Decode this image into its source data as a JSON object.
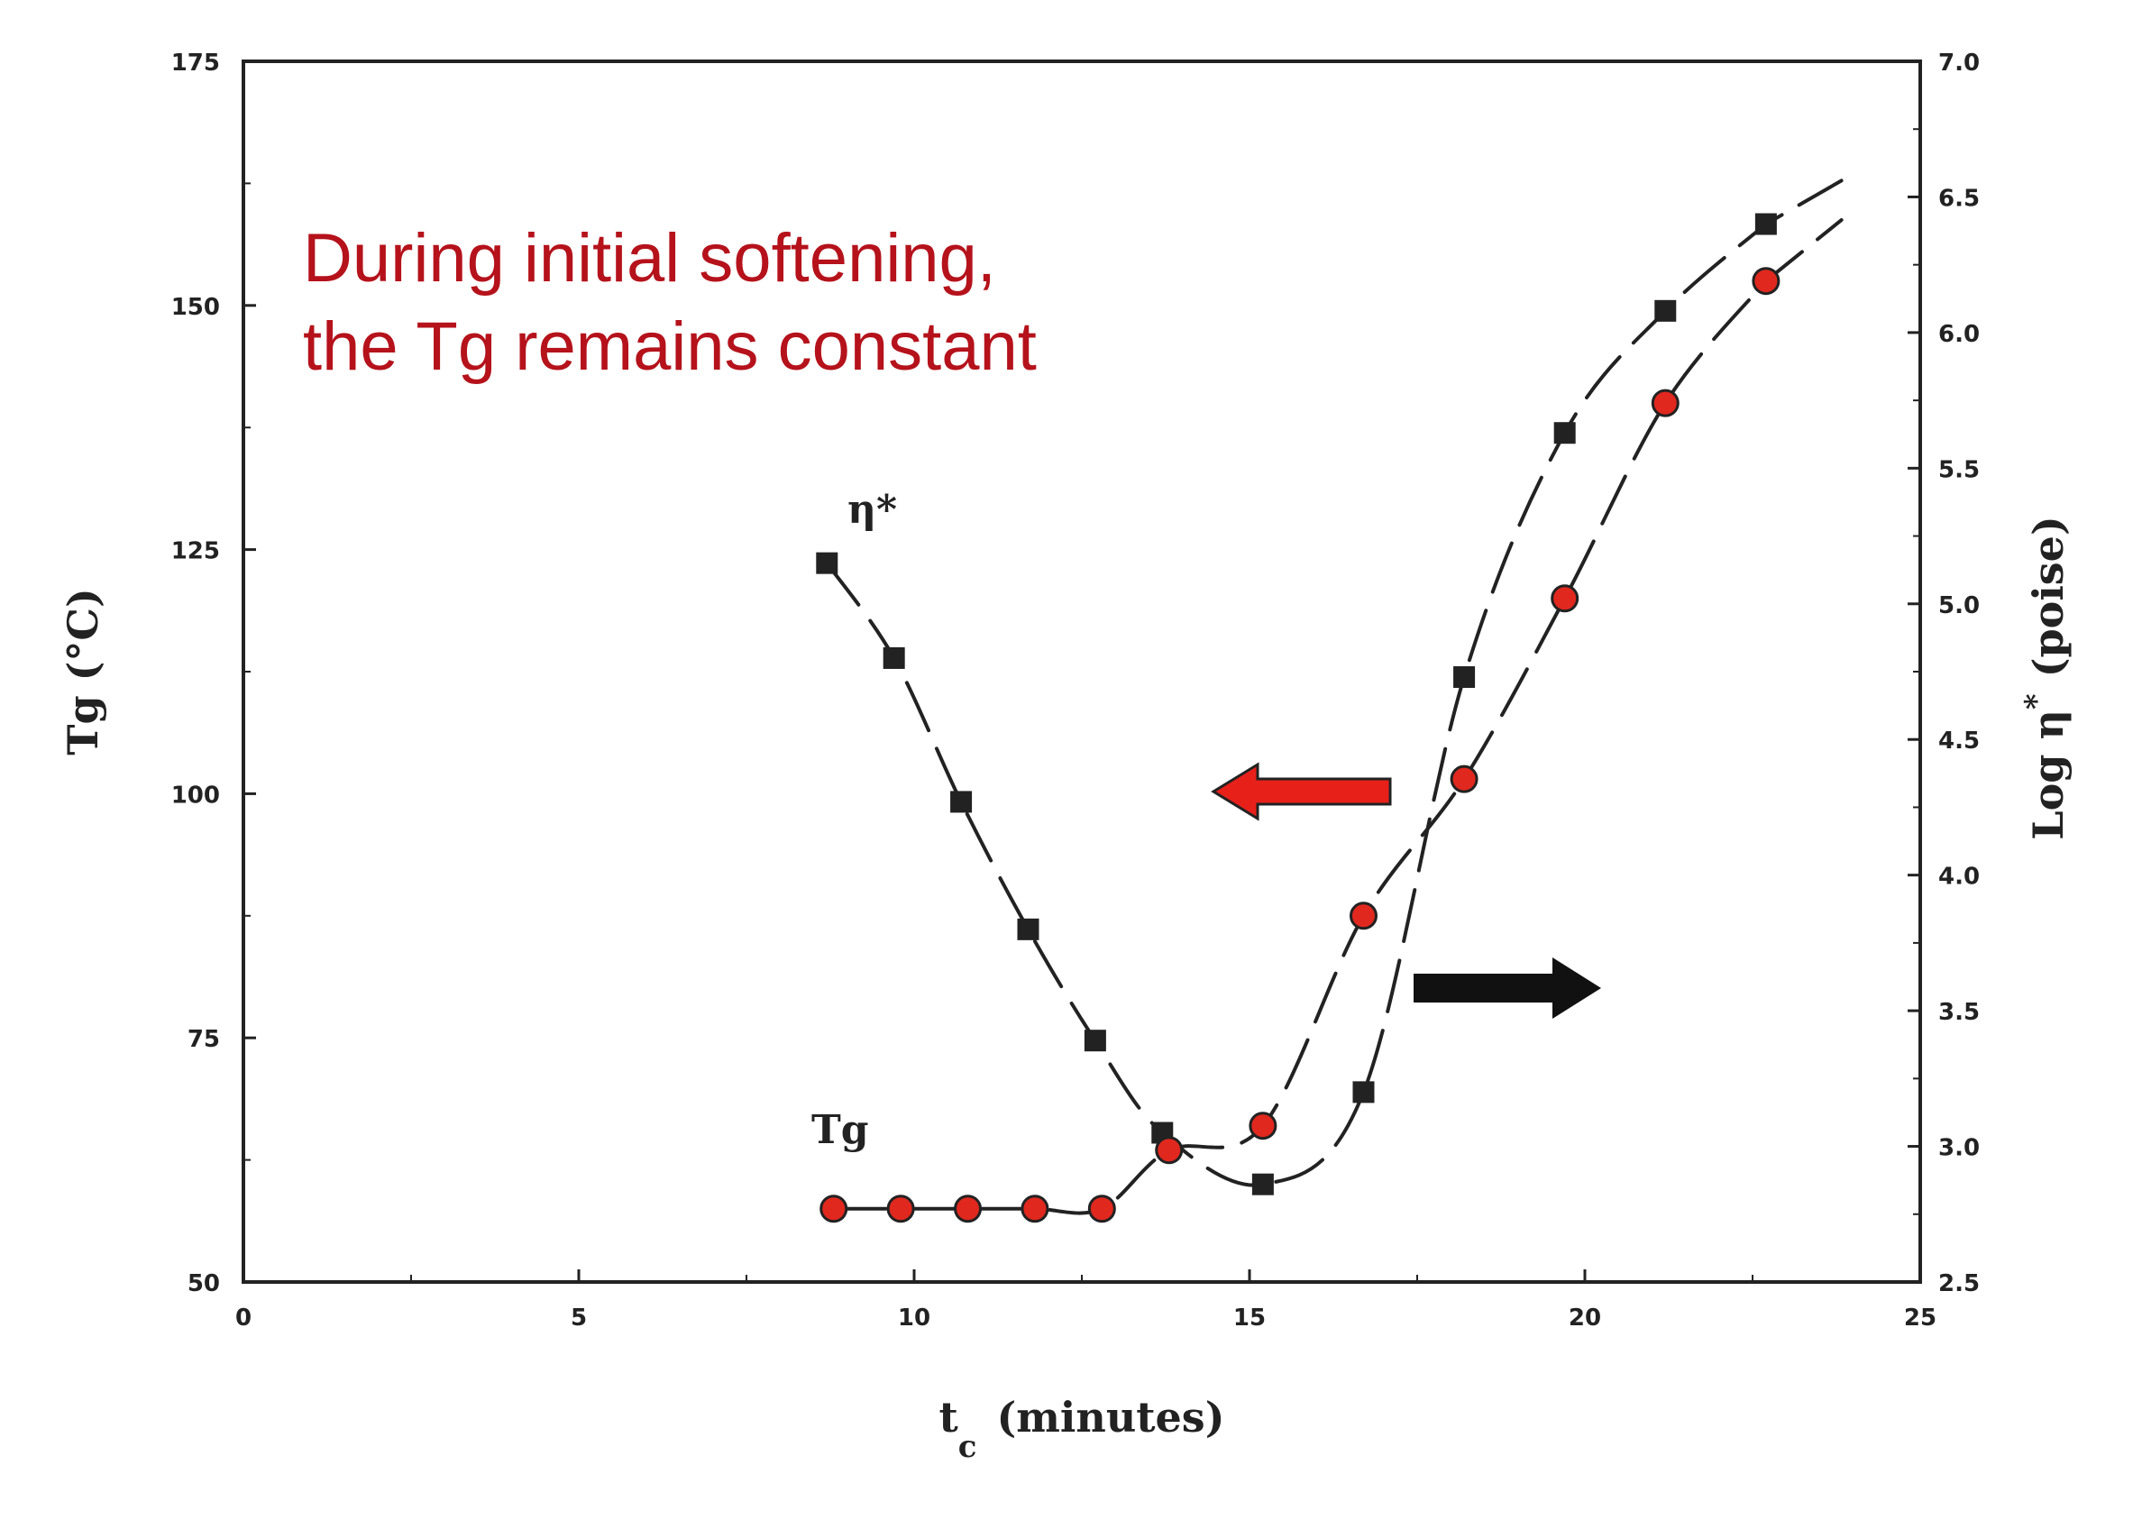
{
  "chart_data": {
    "type": "scatter",
    "annotation": [
      "During initial softening,",
      "the Tg remains constant"
    ],
    "x_axis": {
      "label_main": "t",
      "label_sub": "c",
      "label_rest": "(minutes)",
      "range": [
        0,
        25
      ],
      "ticks": [
        "0",
        "5",
        "10",
        "15",
        "20",
        "25"
      ]
    },
    "y_left": {
      "label": "Tg (°C)",
      "range": [
        50,
        175
      ],
      "ticks": [
        "50",
        "75",
        "100",
        "125",
        "150",
        "175"
      ]
    },
    "y_right": {
      "label_main": "Log η",
      "label_sup": "*",
      "label_rest": "(poise)",
      "range": [
        2.5,
        7.0
      ],
      "ticks": [
        "2.5",
        "3.0",
        "3.5",
        "4.0",
        "4.5",
        "5.0",
        "5.5",
        "6.0",
        "6.5",
        "7.0"
      ]
    },
    "series": [
      {
        "name": "η*",
        "axis": "right",
        "marker": "square",
        "color": "#222222",
        "x": [
          8.7,
          9.7,
          10.7,
          11.7,
          12.7,
          13.7,
          15.2,
          16.7,
          18.2,
          19.7,
          21.2,
          22.7
        ],
        "y": [
          5.15,
          4.8,
          4.27,
          3.8,
          3.39,
          3.05,
          2.86,
          3.2,
          4.73,
          5.63,
          6.08,
          6.4
        ]
      },
      {
        "name": "Tg",
        "axis": "left",
        "marker": "circle",
        "color": "#e0281e",
        "x": [
          8.8,
          9.8,
          10.8,
          11.8,
          12.8,
          13.8,
          15.2,
          16.7,
          18.2,
          19.7,
          21.2,
          22.7
        ],
        "y": [
          57.5,
          57.5,
          57.5,
          57.5,
          57.5,
          63.5,
          66,
          87.5,
          101.5,
          120,
          140,
          152.5
        ]
      }
    ],
    "arrows": [
      {
        "direction": "left",
        "color": "#e8201a",
        "points_to": "left-axis"
      },
      {
        "direction": "right",
        "color": "#111111",
        "points_to": "right-axis"
      }
    ]
  }
}
